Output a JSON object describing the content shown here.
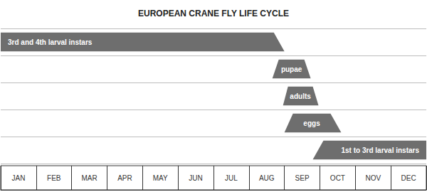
{
  "chart_data": {
    "type": "gantt",
    "title": "EUROPEAN CRANE FLY LIFE CYCLE",
    "categories": [
      "JAN",
      "FEB",
      "MAR",
      "APR",
      "MAY",
      "JUN",
      "JUL",
      "AUG",
      "SEP",
      "OCT",
      "NOV",
      "DEC"
    ],
    "xlim": [
      0,
      12
    ],
    "color": "#6e6e6e",
    "grid": true,
    "tick_labels": "x",
    "series": [
      {
        "name": "3rd and 4th larval instars",
        "from": [
          0,
          0
        ],
        "to": [
          7.7,
          8.0
        ]
      },
      {
        "name": "pupae",
        "from": [
          7.66,
          7.84
        ],
        "to": [
          8.56,
          8.74
        ]
      },
      {
        "name": "adults",
        "from": [
          7.96,
          8.1
        ],
        "to": [
          8.8,
          8.96
        ]
      },
      {
        "name": "eggs",
        "from": [
          8.0,
          8.24
        ],
        "to": [
          9.3,
          9.6
        ]
      },
      {
        "name": "1st to 3rd larval instars",
        "from": [
          8.8,
          9.1
        ],
        "to": [
          12,
          12
        ]
      }
    ]
  }
}
